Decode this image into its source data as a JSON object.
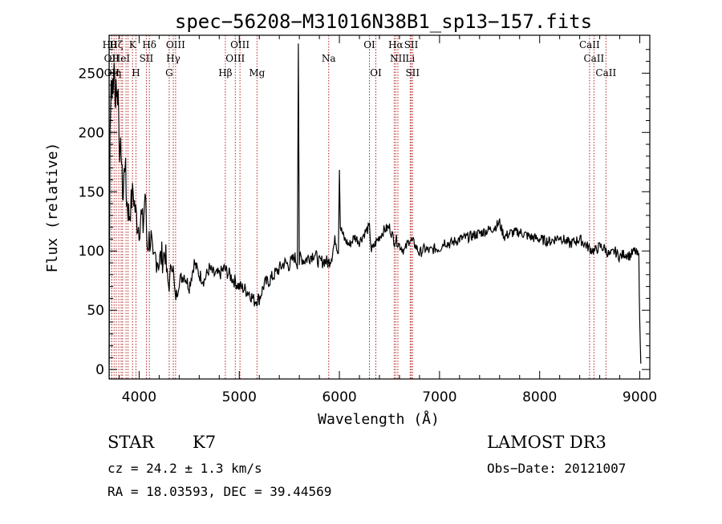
{
  "chart_data": {
    "type": "line",
    "title": "spec−56208−M31016N38B1_sp13−157.fits",
    "xlabel": "Wavelength (Å)",
    "ylabel": "Flux (relative)",
    "xlim": [
      3700,
      9100
    ],
    "ylim": [
      -8,
      282
    ],
    "xticks": [
      4000,
      5000,
      6000,
      7000,
      8000,
      9000
    ],
    "yticks": [
      0,
      50,
      100,
      150,
      200,
      250
    ],
    "grid": false,
    "series": [
      {
        "x": [
          3700,
          3710,
          3720,
          3730,
          3740,
          3750,
          3760,
          3770,
          3780,
          3790,
          3800,
          3810,
          3820,
          3830,
          3840,
          3850,
          3860,
          3870,
          3880,
          3890,
          3900,
          3920,
          3940,
          3960,
          3980,
          4000,
          4020,
          4040,
          4060,
          4080,
          4100,
          4120,
          4140,
          4160,
          4180,
          4200,
          4220,
          4240,
          4260,
          4280,
          4300,
          4320,
          4340,
          4360,
          4380,
          4400,
          4450,
          4500,
          4550,
          4600,
          4650,
          4700,
          4750,
          4800,
          4850,
          4900,
          4950,
          5000,
          5050,
          5100,
          5150,
          5200,
          5250,
          5300,
          5350,
          5400,
          5450,
          5500,
          5550,
          5580,
          5590,
          5600,
          5610,
          5650,
          5700,
          5750,
          5800,
          5850,
          5890,
          5920,
          5960,
          5990,
          6000,
          6010,
          6050,
          6100,
          6150,
          6200,
          6250,
          6300,
          6320,
          6350,
          6400,
          6450,
          6500,
          6550,
          6563,
          6600,
          6650,
          6700,
          6750,
          6800,
          6850,
          6900,
          6950,
          7000,
          7050,
          7100,
          7150,
          7200,
          7300,
          7400,
          7500,
          7550,
          7600,
          7620,
          7650,
          7700,
          7800,
          7900,
          8000,
          8100,
          8200,
          8300,
          8400,
          8500,
          8550,
          8600,
          8650,
          8700,
          8750,
          8800,
          8850,
          8900,
          8950,
          8990,
          9000,
          9010
        ],
        "y": [
          5,
          210,
          245,
          240,
          230,
          265,
          220,
          245,
          230,
          235,
          200,
          175,
          190,
          160,
          145,
          165,
          180,
          150,
          140,
          135,
          130,
          140,
          150,
          135,
          125,
          120,
          130,
          120,
          150,
          105,
          110,
          110,
          85,
          95,
          95,
          90,
          95,
          95,
          100,
          75,
          70,
          90,
          85,
          60,
          65,
          75,
          80,
          70,
          90,
          80,
          75,
          85,
          80,
          80,
          85,
          80,
          75,
          70,
          68,
          65,
          58,
          60,
          72,
          75,
          80,
          85,
          90,
          88,
          95,
          90,
          275,
          90,
          95,
          92,
          95,
          98,
          90,
          92,
          90,
          95,
          110,
          100,
          170,
          120,
          110,
          105,
          112,
          108,
          115,
          120,
          100,
          105,
          112,
          118,
          120,
          108,
          110,
          105,
          100,
          110,
          106,
          98,
          102,
          100,
          102,
          102,
          108,
          106,
          108,
          110,
          112,
          115,
          118,
          120,
          124,
          118,
          112,
          115,
          116,
          112,
          110,
          108,
          112,
          106,
          110,
          102,
          100,
          104,
          102,
          96,
          100,
          95,
          98,
          96,
          100,
          95,
          40,
          5
        ]
      }
    ],
    "line_markers": [
      {
        "x": 3704,
        "row": 0,
        "label": "Hθ"
      },
      {
        "x": 3726,
        "row": 1,
        "label": "OII"
      },
      {
        "x": 3727,
        "row": 2,
        "label": "OII"
      },
      {
        "x": 3750,
        "row": 2,
        "label": "Hη"
      },
      {
        "x": 3771,
        "row": 0,
        "label": "Hζ"
      },
      {
        "x": 3797,
        "row": 0,
        "label": ""
      },
      {
        "x": 3820,
        "row": 1,
        "label": "HeI"
      },
      {
        "x": 3835,
        "row": 2,
        "label": ""
      },
      {
        "x": 3869,
        "row": 1,
        "label": ""
      },
      {
        "x": 3889,
        "row": 2,
        "label": ""
      },
      {
        "x": 3934,
        "row": 0,
        "label": "K"
      },
      {
        "x": 3968,
        "row": 2,
        "label": "H"
      },
      {
        "x": 4072,
        "row": 1,
        "label": "SII"
      },
      {
        "x": 4102,
        "row": 0,
        "label": "Hδ"
      },
      {
        "x": 4300,
        "row": 2,
        "label": "G"
      },
      {
        "x": 4341,
        "row": 1,
        "label": "Hγ"
      },
      {
        "x": 4364,
        "row": 0,
        "label": "OIII"
      },
      {
        "x": 4861,
        "row": 2,
        "label": "Hβ"
      },
      {
        "x": 4960,
        "row": 1,
        "label": "OIII"
      },
      {
        "x": 5007,
        "row": 0,
        "label": "OIII"
      },
      {
        "x": 5177,
        "row": 2,
        "label": "Mg"
      },
      {
        "x": 5893,
        "row": 1,
        "label": "Na"
      },
      {
        "x": 6300,
        "row": 0,
        "label": "OI"
      },
      {
        "x": 6364,
        "row": 2,
        "label": "OI"
      },
      {
        "x": 6548,
        "row": 2,
        "label": ""
      },
      {
        "x": 6563,
        "row": 0,
        "label": "Hα"
      },
      {
        "x": 6584,
        "row": 1,
        "label": "NII"
      },
      {
        "x": 6707,
        "row": 1,
        "label": "Li"
      },
      {
        "x": 6717,
        "row": 0,
        "label": "SII"
      },
      {
        "x": 6731,
        "row": 2,
        "label": "SII"
      },
      {
        "x": 8498,
        "row": 0,
        "label": "CaII"
      },
      {
        "x": 8542,
        "row": 1,
        "label": "CaII"
      },
      {
        "x": 8662,
        "row": 2,
        "label": "CaII"
      }
    ]
  },
  "info": {
    "object_class": "STAR",
    "subclass": "K7",
    "survey": "LAMOST DR3",
    "redshift": "cz = 24.2 ± 1.3 km/s",
    "obs_date": "Obs−Date: 20121007",
    "coords": "RA =  18.03593, DEC =  39.44569"
  },
  "colors": {
    "spectrum": "#000000",
    "marker_lines": "#b22222"
  }
}
